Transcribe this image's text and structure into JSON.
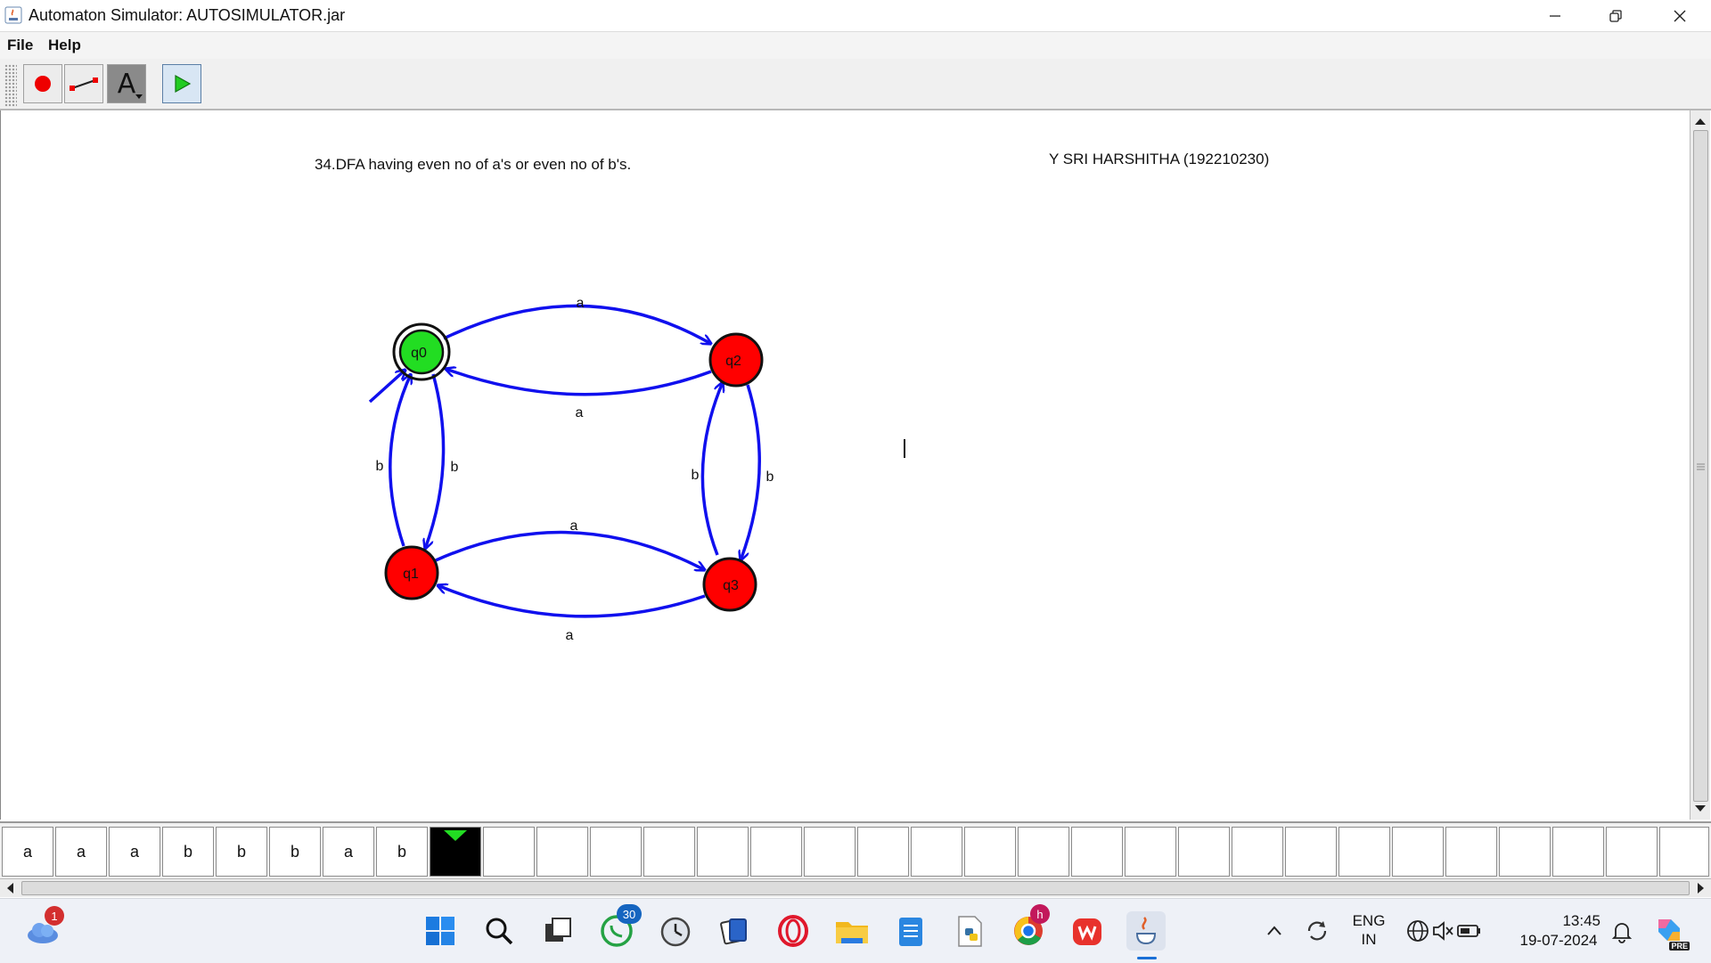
{
  "window": {
    "title": "Automaton Simulator: AUTOSIMULATOR.jar"
  },
  "menu": {
    "file_label": "File",
    "help_label": "Help"
  },
  "toolbar": {
    "tools": [
      "state-tool",
      "transition-tool",
      "attribute-editor-tool",
      "simulate-tool"
    ],
    "text_tool_glyph": "A"
  },
  "canvas": {
    "title_note": "34.DFA having even no of a's or even no of b's.",
    "author_note": "Y SRI HARSHITHA (192210230)",
    "states": [
      {
        "label": "q0",
        "initial": true,
        "final": true,
        "active": true,
        "color": "#22dd22"
      },
      {
        "label": "q2",
        "initial": false,
        "final": false,
        "active": false,
        "color": "#ff0000"
      },
      {
        "label": "q1",
        "initial": false,
        "final": false,
        "active": false,
        "color": "#ff0000"
      },
      {
        "label": "q3",
        "initial": false,
        "final": false,
        "active": false,
        "color": "#ff0000"
      }
    ],
    "transitions": [
      {
        "from": "q0",
        "to": "q2",
        "symbol": "a"
      },
      {
        "from": "q2",
        "to": "q0",
        "symbol": "a"
      },
      {
        "from": "q1",
        "to": "q0",
        "symbol": "b"
      },
      {
        "from": "q0",
        "to": "q1",
        "symbol": "b"
      },
      {
        "from": "q3",
        "to": "q2",
        "symbol": "b"
      },
      {
        "from": "q2",
        "to": "q3",
        "symbol": "b"
      },
      {
        "from": "q1",
        "to": "q3",
        "symbol": "a"
      },
      {
        "from": "q3",
        "to": "q1",
        "symbol": "a"
      }
    ],
    "edge_color": "#1010ee"
  },
  "tape": {
    "cells": [
      "a",
      "a",
      "a",
      "b",
      "b",
      "b",
      "a",
      "b"
    ],
    "head_index": 8,
    "head_color": "#22dd22"
  },
  "taskbar": {
    "weather_badge": "1",
    "whatsapp_badge": "30",
    "chrome_profile": "h",
    "language_line1": "ENG",
    "language_line2": "IN",
    "time": "13:45",
    "date": "19-07-2024",
    "copilot_tag": "PRE"
  }
}
